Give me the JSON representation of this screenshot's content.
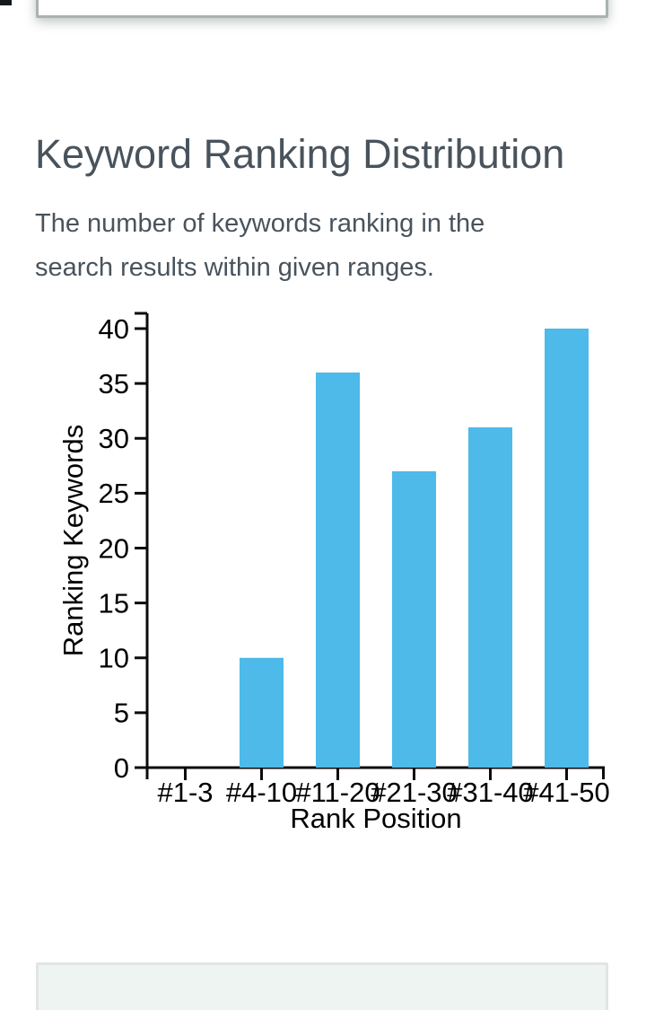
{
  "header": {
    "title": "Keyword Ranking Distribution",
    "subtitle": "The number of keywords ranking in the search results within given ranges."
  },
  "colors": {
    "accent_bar": "#4dbae9",
    "heading_text": "#49535c",
    "axis": "#0b0b0b",
    "bottom_panel_bg": "#eef4f1",
    "card_border": "#a9b3b1"
  },
  "chart_data": {
    "type": "bar",
    "categories": [
      "#1-3",
      "#4-10",
      "#11-20",
      "#21-30",
      "#31-40",
      "#41-50"
    ],
    "values": [
      0,
      10,
      36,
      27,
      31,
      40
    ],
    "title": "Keyword Ranking Distribution",
    "xlabel": "Rank Position",
    "ylabel": "Ranking Keywords",
    "ylim": [
      0,
      40
    ],
    "ytick_step": 5,
    "yticks": [
      0,
      5,
      10,
      15,
      20,
      25,
      30,
      35,
      40
    ],
    "grid": false,
    "legend": null,
    "bar_color": "#4dbae9",
    "axis_color": "#0b0b0b"
  }
}
